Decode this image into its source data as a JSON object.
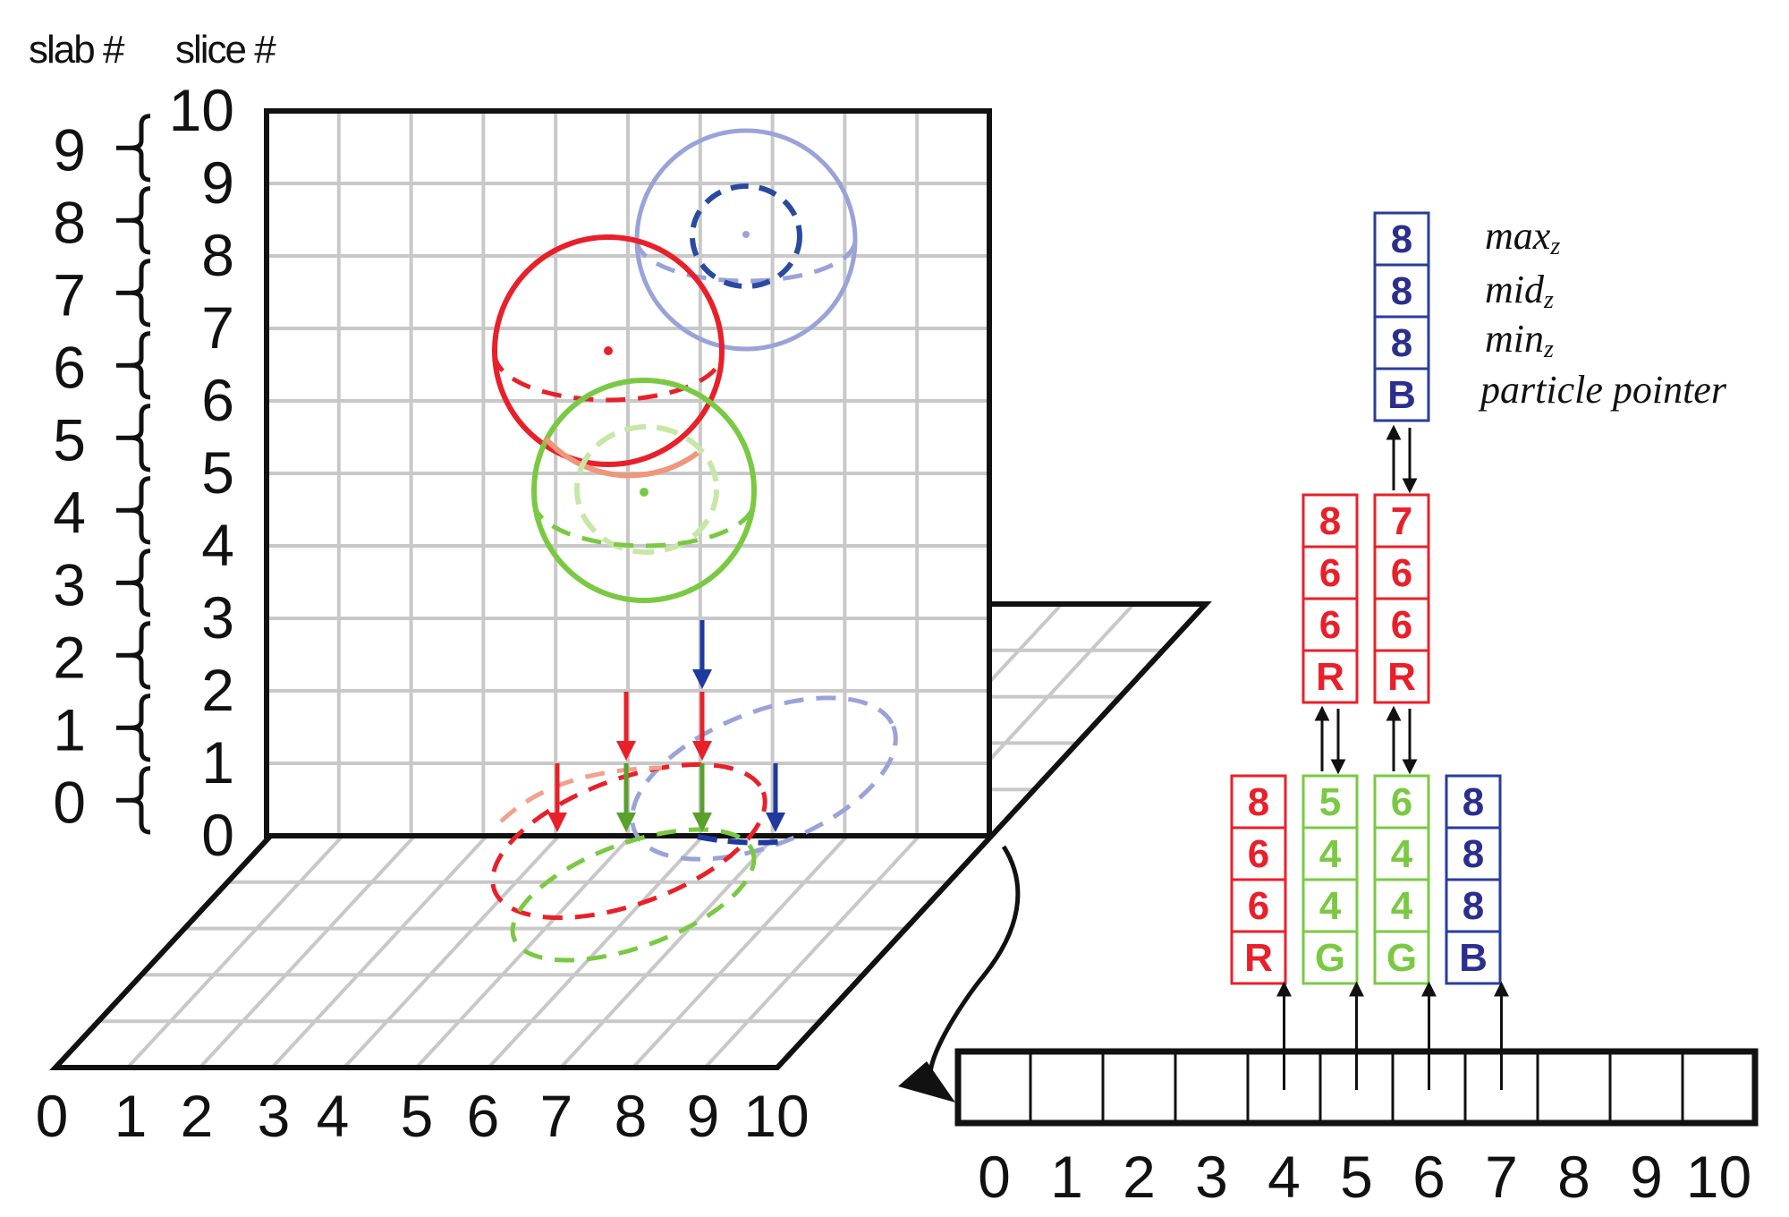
{
  "headers": {
    "slab": "slab #",
    "slice": "slice #"
  },
  "slab_numbers": [
    "9",
    "8",
    "7",
    "6",
    "5",
    "4",
    "3",
    "2",
    "1",
    "0"
  ],
  "slice_numbers": [
    "10",
    "9",
    "8",
    "7",
    "6",
    "5",
    "4",
    "3",
    "2",
    "1",
    "0"
  ],
  "x_axis_numbers": [
    "0",
    "1",
    "2",
    "3",
    "4",
    "5",
    "6",
    "7",
    "8",
    "9",
    "10"
  ],
  "array_indices": [
    "0",
    "1",
    "2",
    "3",
    "4",
    "5",
    "6",
    "7",
    "8",
    "9",
    "10"
  ],
  "colors": {
    "red": "#e8202a",
    "green": "#7ac943",
    "blue": "#2a3c9e",
    "light_blue": "#9aa3d8",
    "axis": "#111111",
    "grid": "#c8c8c8"
  },
  "legend": {
    "max": "max",
    "max_sub": "z",
    "mid": "mid",
    "mid_sub": "z",
    "min": "min",
    "min_sub": "z",
    "pointer": "particle pointer"
  },
  "stacks": {
    "top_blue": [
      "8",
      "8",
      "8",
      "B"
    ],
    "mid_red_a": [
      "8",
      "6",
      "6",
      "R"
    ],
    "mid_red_b": [
      "7",
      "6",
      "6",
      "R"
    ],
    "bottom_red": [
      "8",
      "6",
      "6",
      "R"
    ],
    "bottom_green_a": [
      "5",
      "4",
      "4",
      "G"
    ],
    "bottom_green_b": [
      "6",
      "4",
      "4",
      "G"
    ],
    "bottom_blue": [
      "8",
      "8",
      "8",
      "B"
    ]
  }
}
